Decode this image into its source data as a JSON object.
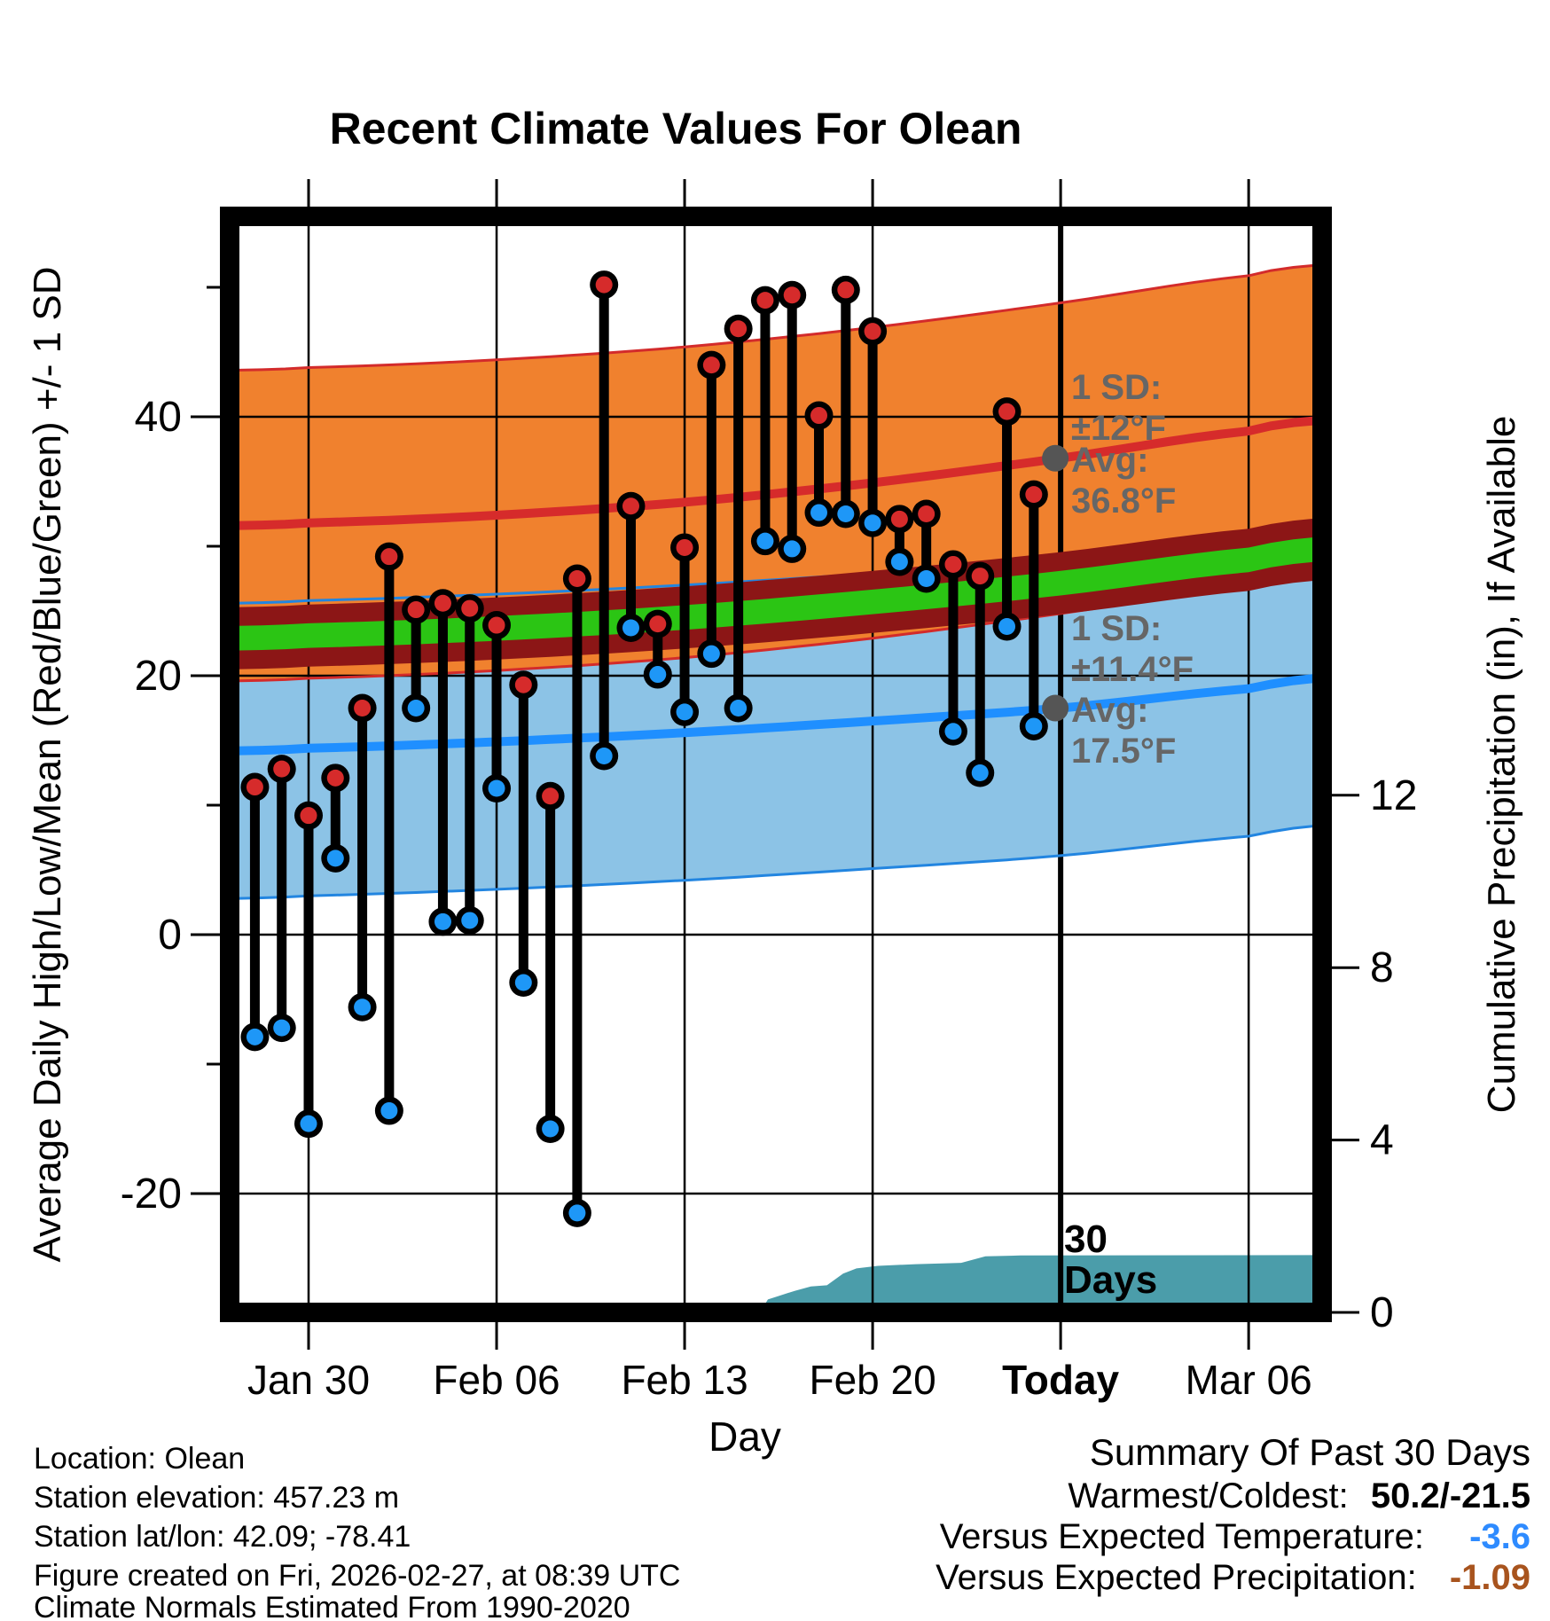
{
  "title": "Recent Climate Values For Olean",
  "axis": {
    "y_left_label": "Average Daily High/Low/Mean (Red/Blue/Green) +/- 1 SD",
    "y_right_label": "Cumulative Precipitation (in), If Available",
    "x_label": "Day",
    "x_ticks": [
      "Jan 30",
      "Feb 06",
      "Feb 13",
      "Feb 20",
      "Today",
      "Mar 06"
    ],
    "x_tick_day_offsets": [
      0,
      7,
      14,
      21,
      28,
      35
    ],
    "bold_x_tick": "Today",
    "y_left_major_ticks": [
      40,
      20,
      0,
      -20
    ],
    "y_left_minor_ticks": [
      50,
      30,
      10,
      -10
    ],
    "y_right_ticks": [
      12,
      8,
      4,
      0
    ]
  },
  "chart_data": {
    "type": "composite",
    "description": "Daily observed high/low temperatures (red/blue dots joined by black stems), climate normal bands (avg high +/- 1 SD orange, avg low +/- 1 SD light blue, mean band maroon/green) and cumulative precipitation area (teal, right axis).",
    "daily": {
      "dates": [
        "Jan 28",
        "Jan 29",
        "Jan 30",
        "Jan 31",
        "Feb 01",
        "Feb 02",
        "Feb 03",
        "Feb 04",
        "Feb 05",
        "Feb 06",
        "Feb 07",
        "Feb 08",
        "Feb 09",
        "Feb 10",
        "Feb 11",
        "Feb 12",
        "Feb 13",
        "Feb 14",
        "Feb 15",
        "Feb 16",
        "Feb 17",
        "Feb 18",
        "Feb 19",
        "Feb 20",
        "Feb 21",
        "Feb 22",
        "Feb 23",
        "Feb 24",
        "Feb 25",
        "Feb 26"
      ],
      "day_offsets": [
        -2,
        -1,
        0,
        1,
        2,
        3,
        4,
        5,
        6,
        7,
        8,
        9,
        10,
        11,
        12,
        13,
        14,
        15,
        16,
        17,
        18,
        19,
        20,
        21,
        22,
        23,
        24,
        25,
        26,
        27
      ],
      "high": [
        11.4,
        12.8,
        9.2,
        12.1,
        17.5,
        29.2,
        25.1,
        25.6,
        25.2,
        23.9,
        19.3,
        10.7,
        27.5,
        50.2,
        33.1,
        24.0,
        29.9,
        44.0,
        46.8,
        49.0,
        49.4,
        40.1,
        49.8,
        46.6,
        32.1,
        32.5,
        28.6,
        27.7,
        40.4,
        34.0
      ],
      "low": [
        -7.9,
        -7.2,
        -14.6,
        5.9,
        -5.6,
        -13.6,
        17.5,
        1.0,
        1.1,
        11.3,
        -3.7,
        -15.0,
        -21.5,
        13.8,
        23.7,
        20.1,
        17.2,
        21.7,
        17.5,
        30.4,
        29.8,
        32.6,
        32.5,
        31.8,
        28.8,
        27.5,
        15.7,
        12.5,
        23.8,
        16.1
      ]
    },
    "normals": {
      "x_day_offsets": [
        -2.6,
        0,
        7,
        14,
        21,
        28,
        35,
        37.5
      ],
      "avg_high": [
        31.6,
        31.8,
        32.4,
        33.4,
        34.9,
        36.8,
        38.9,
        39.7
      ],
      "avg_low": [
        14.2,
        14.4,
        14.9,
        15.6,
        16.5,
        17.5,
        19.0,
        19.8
      ],
      "sd_high": 12,
      "sd_low": 11.4,
      "mean_band_halfwidth_f": 2.4,
      "green_line_halfwidth_f": 0.95
    },
    "precip": {
      "points_day_in": [
        [
          16.8,
          0
        ],
        [
          17.1,
          0.3
        ],
        [
          17.5,
          0.38
        ],
        [
          18.1,
          0.5
        ],
        [
          18.7,
          0.6
        ],
        [
          19.3,
          0.63
        ],
        [
          19.9,
          0.9
        ],
        [
          20.4,
          1.02
        ],
        [
          21.2,
          1.08
        ],
        [
          22.6,
          1.12
        ],
        [
          24.3,
          1.15
        ],
        [
          25.2,
          1.3
        ],
        [
          26.5,
          1.32
        ],
        [
          37.5,
          1.33
        ]
      ]
    },
    "today_day_offset": 28,
    "x_day_range": [
      -2.6,
      37.5
    ],
    "y_temp_range": [
      -28.4,
      54.7
    ],
    "y_precip_ticks": [
      0,
      4,
      8,
      12
    ]
  },
  "annotations": {
    "high": {
      "sd_label": "1 SD:",
      "sd_value": "±12°F",
      "avg_label": "Avg:",
      "avg_value": "36.8°F",
      "avg_num": 36.8
    },
    "low": {
      "sd_label": "1 SD:",
      "sd_value": "±11.4°F",
      "avg_label": "Avg:",
      "avg_value": "17.5°F",
      "avg_num": 17.5
    },
    "period": {
      "line1": "30",
      "line2": "Days"
    }
  },
  "footer": {
    "lines": [
      "Location: Olean",
      "Station elevation: 457.23 m",
      "Station lat/lon: 42.09; -78.41",
      "Figure created on Fri, 2026-02-27, at 08:39 UTC",
      "Climate Normals Estimated From 1990-2020"
    ]
  },
  "summary": {
    "title": "Summary Of Past 30 Days",
    "rows": [
      {
        "label": "Warmest/Coldest:",
        "value": "50.2/-21.5",
        "color": "#000000"
      },
      {
        "label": "Versus Expected Temperature:",
        "value": "-3.6",
        "color": "#2e8bff"
      },
      {
        "label": "Versus Expected Precipitation:",
        "value": "-1.09",
        "color": "#a8541e"
      }
    ]
  },
  "colors": {
    "orange_band": "#f0812e",
    "red_line": "#d62b2b",
    "red_edge": "#d32b2b",
    "blue_band": "#8cc3e6",
    "blue_line": "#1f8fff",
    "blue_edge": "#2285e0",
    "maroon_band": "#8c1616",
    "green_band": "#2bc514",
    "teal_fill": "#4b9daa",
    "stem": "#000000",
    "dot_red": "#d62b2b",
    "dot_blue": "#1e97f7",
    "gray_marker": "#555555",
    "grid": "#000000"
  }
}
